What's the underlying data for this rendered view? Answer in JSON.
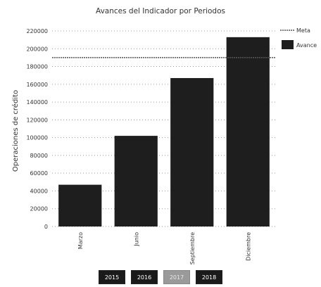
{
  "chart_data": {
    "type": "bar",
    "title": "Avances del Indicador por Periodos",
    "ylabel": "Operaciones de crédito",
    "xlabel": "",
    "categories": [
      "Marzo",
      "Junio",
      "Septiembre",
      "Diciembre"
    ],
    "series": [
      {
        "name": "Avance",
        "values": [
          47000,
          102000,
          167000,
          213000
        ],
        "color": "#1e1e1e"
      },
      {
        "name": "Meta",
        "values": [
          190000,
          190000,
          190000,
          190000
        ],
        "color": "#555555"
      }
    ],
    "yticks": [
      "0",
      "20000",
      "40000",
      "60000",
      "80000",
      "100000",
      "120000",
      "140000",
      "160000",
      "180000",
      "200000",
      "220000"
    ],
    "ylim": [
      0,
      220000
    ],
    "grid": true,
    "legend_position": "top-right"
  },
  "year_buttons": [
    {
      "label": "2015",
      "active": false
    },
    {
      "label": "2016",
      "active": false
    },
    {
      "label": "2017",
      "active": true
    },
    {
      "label": "2018",
      "active": false
    }
  ]
}
